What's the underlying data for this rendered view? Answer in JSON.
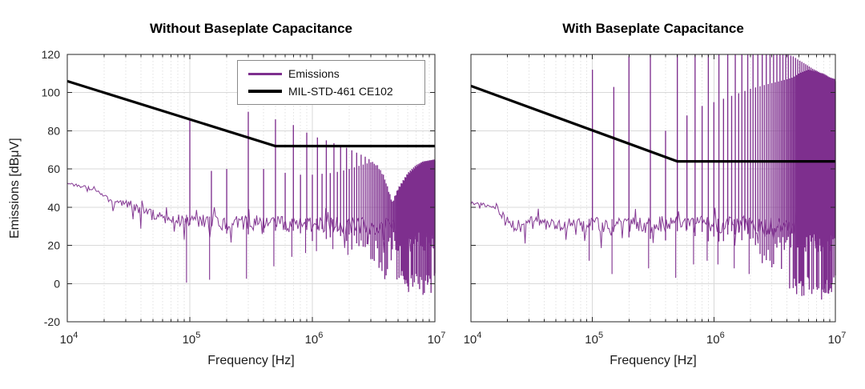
{
  "figure": {
    "background": "#FFFFFF",
    "colors": {
      "emissions": "#7E2F8E",
      "limit": "#000000",
      "grid": "#D9D9D9",
      "minor_grid": "#E2E2E2",
      "axis": "#262626"
    }
  },
  "chart_data": [
    {
      "type": "line",
      "title": "Without Baseplate Capacitance",
      "xlabel": "Frequency [Hz]",
      "ylabel": "Emissions [dBμV]",
      "xscale": "log",
      "xlim": [
        10000,
        10000000
      ],
      "ylim": [
        -20,
        120
      ],
      "xticks": [
        10000,
        100000,
        1000000,
        10000000
      ],
      "yticks": [
        -20,
        0,
        20,
        40,
        60,
        80,
        100,
        120
      ],
      "grid": true,
      "has_y_labels": true,
      "legend": {
        "position": "northeast"
      },
      "series": [
        {
          "name": "Emissions",
          "color": "#7E2F8E",
          "kind": "spectrum",
          "harmonic_spacing_hz": 100000,
          "noise_floor": [
            [
              10000,
              53
            ],
            [
              12000,
              51.5
            ],
            [
              15000,
              50
            ],
            [
              18000,
              48
            ],
            [
              21000,
              45
            ],
            [
              24000,
              41.5
            ],
            [
              30000,
              41
            ],
            [
              34000,
              41.5
            ],
            [
              40000,
              38
            ],
            [
              50000,
              36
            ],
            [
              60000,
              34.5
            ],
            [
              80000,
              33
            ],
            [
              100000,
              33
            ],
            [
              150000,
              32
            ],
            [
              200000,
              31.5
            ],
            [
              300000,
              32
            ],
            [
              500000,
              31
            ],
            [
              1000000,
              31
            ],
            [
              2000000,
              30.5
            ],
            [
              4000000,
              30
            ],
            [
              10000000,
              30
            ]
          ],
          "noise_jitter": [
            [
              10000,
              0.6
            ],
            [
              20000,
              1
            ],
            [
              26000,
              2.5
            ],
            [
              40000,
              3
            ],
            [
              70000,
              3.5
            ],
            [
              100000,
              4
            ],
            [
              1000000,
              4.5
            ],
            [
              10000000,
              4.5
            ]
          ],
          "odd_harmonic_peaks": [
            [
              100000,
              86
            ],
            [
              300000,
              90
            ],
            [
              500000,
              86
            ],
            [
              700000,
              83
            ],
            [
              900000,
              79
            ],
            [
              1100000,
              76.5
            ],
            [
              1300000,
              75
            ],
            [
              1500000,
              73.5
            ],
            [
              1700000,
              72.5
            ],
            [
              2000000,
              70.5
            ],
            [
              2400000,
              68
            ],
            [
              2800000,
              66
            ],
            [
              3200000,
              63
            ],
            [
              3600000,
              59
            ],
            [
              4000000,
              53
            ],
            [
              4500000,
              43
            ],
            [
              5000000,
              50
            ],
            [
              6000000,
              58
            ],
            [
              7000000,
              62
            ],
            [
              8000000,
              64
            ],
            [
              10000000,
              65
            ]
          ],
          "even_harmonic_peaks": [
            [
              200000,
              60
            ],
            [
              400000,
              60
            ],
            [
              600000,
              58
            ],
            [
              800000,
              57
            ],
            [
              1000000,
              57
            ],
            [
              1200000,
              57.5
            ],
            [
              1500000,
              58
            ],
            [
              2000000,
              60
            ],
            [
              2500000,
              62
            ],
            [
              3000000,
              63.5
            ],
            [
              3400000,
              62
            ],
            [
              3800000,
              57
            ],
            [
              4200000,
              48
            ],
            [
              4500000,
              42
            ],
            [
              5000000,
              49
            ],
            [
              6000000,
              57
            ],
            [
              7000000,
              61
            ],
            [
              8000000,
              63.5
            ],
            [
              10000000,
              64.5
            ]
          ],
          "mass_bottom": [
            [
              2000000,
              20
            ],
            [
              2500000,
              14
            ],
            [
              3000000,
              8
            ],
            [
              3500000,
              3
            ],
            [
              4000000,
              -1
            ],
            [
              4500000,
              4
            ],
            [
              5000000,
              0
            ],
            [
              5500000,
              -3
            ],
            [
              6000000,
              -5
            ],
            [
              7000000,
              -4
            ],
            [
              8000000,
              -6
            ],
            [
              9000000,
              -3
            ],
            [
              9500000,
              -8
            ],
            [
              10000000,
              -2
            ]
          ],
          "deep_minima": [
            [
              94000,
              0.5
            ],
            [
              145000,
              2
            ],
            [
              290000,
              2.5
            ],
            [
              485000,
              9
            ],
            [
              680000,
              14
            ],
            [
              880000,
              16
            ],
            [
              1080000,
              17
            ],
            [
              1470000,
              18
            ],
            [
              1950000,
              15
            ]
          ],
          "extra_peaks": [
            [
              150000,
              59
            ]
          ]
        },
        {
          "name": "MIL-STD-461 CE102",
          "color": "#000000",
          "kind": "limit",
          "points": [
            [
              10000,
              106
            ],
            [
              500000,
              72
            ],
            [
              10000000,
              72
            ]
          ]
        }
      ]
    },
    {
      "type": "line",
      "title": "With Baseplate Capacitance",
      "xlabel": "Frequency [Hz]",
      "ylabel": "",
      "xscale": "log",
      "xlim": [
        10000,
        10000000
      ],
      "ylim": [
        -20,
        120
      ],
      "xticks": [
        10000,
        100000,
        1000000,
        10000000
      ],
      "yticks": [
        -20,
        0,
        20,
        40,
        60,
        80,
        100,
        120
      ],
      "grid": true,
      "has_y_labels": false,
      "series": [
        {
          "name": "Emissions",
          "color": "#7E2F8E",
          "kind": "spectrum",
          "harmonic_spacing_hz": 100000,
          "noise_floor": [
            [
              10000,
              42
            ],
            [
              13000,
              41
            ],
            [
              16000,
              40.5
            ],
            [
              19000,
              34
            ],
            [
              22000,
              30
            ],
            [
              26000,
              29
            ],
            [
              30000,
              32
            ],
            [
              36000,
              33.5
            ],
            [
              42000,
              31
            ],
            [
              50000,
              30
            ],
            [
              60000,
              31.5
            ],
            [
              80000,
              30.5
            ],
            [
              100000,
              31
            ],
            [
              200000,
              30.5
            ],
            [
              500000,
              31
            ],
            [
              1000000,
              31
            ],
            [
              3000000,
              30
            ],
            [
              6000000,
              29
            ],
            [
              10000000,
              29
            ]
          ],
          "noise_jitter": [
            [
              10000,
              0.8
            ],
            [
              16000,
              1.5
            ],
            [
              20000,
              3
            ],
            [
              30000,
              3
            ],
            [
              100000,
              4
            ],
            [
              1000000,
              4.5
            ],
            [
              10000000,
              4.5
            ]
          ],
          "odd_harmonic_peaks": [
            [
              100000,
              112
            ],
            [
              200000,
              119
            ],
            [
              300000,
              120
            ],
            [
              4000000,
              120
            ],
            [
              4500000,
              119
            ],
            [
              5000000,
              117
            ],
            [
              5500000,
              115.5
            ],
            [
              6000000,
              114
            ],
            [
              6500000,
              112.5
            ],
            [
              7000000,
              111.5
            ],
            [
              7500000,
              110.5
            ],
            [
              8000000,
              110
            ],
            [
              9000000,
              108
            ],
            [
              10000000,
              107
            ]
          ],
          "even_harmonic_peaks": [
            [
              200000,
              119
            ],
            [
              400000,
              80
            ],
            [
              600000,
              88
            ],
            [
              800000,
              93
            ],
            [
              1000000,
              95
            ],
            [
              1500000,
              99
            ],
            [
              2000000,
              102
            ],
            [
              3000000,
              105
            ],
            [
              4000000,
              107
            ],
            [
              4500000,
              108
            ],
            [
              5000000,
              110
            ],
            [
              6000000,
              112
            ],
            [
              7000000,
              111
            ],
            [
              8000000,
              109.5
            ],
            [
              9000000,
              107.5
            ],
            [
              10000000,
              106
            ]
          ],
          "mass_bottom": [
            [
              2000000,
              15
            ],
            [
              2500000,
              10
            ],
            [
              3000000,
              5
            ],
            [
              3500000,
              0
            ],
            [
              4000000,
              -2
            ],
            [
              4500000,
              -5
            ],
            [
              5000000,
              -6
            ],
            [
              5500000,
              -8
            ],
            [
              6000000,
              -6
            ],
            [
              6500000,
              -9
            ],
            [
              7000000,
              -5
            ],
            [
              7500000,
              -8
            ],
            [
              8000000,
              -10
            ],
            [
              8500000,
              -4
            ],
            [
              9000000,
              -9
            ],
            [
              9500000,
              -6
            ],
            [
              10000000,
              3
            ]
          ],
          "deep_minima": [
            [
              94000,
              12
            ],
            [
              145000,
              5
            ],
            [
              290000,
              8
            ],
            [
              485000,
              3
            ],
            [
              680000,
              10
            ],
            [
              880000,
              12
            ],
            [
              1080000,
              10
            ],
            [
              1470000,
              8
            ],
            [
              1950000,
              5
            ]
          ],
          "extra_peaks": [
            [
              150000,
              103
            ]
          ]
        },
        {
          "name": "MIL-STD-461 CE102",
          "color": "#000000",
          "kind": "limit",
          "points": [
            [
              10000,
              103.5
            ],
            [
              500000,
              64
            ],
            [
              10000000,
              64
            ]
          ]
        }
      ]
    }
  ]
}
